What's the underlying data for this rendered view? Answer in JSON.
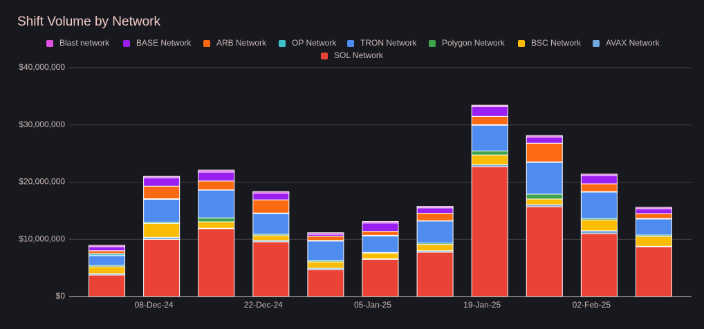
{
  "chart_data": {
    "type": "stacked-bar",
    "title": "Shift Volume by Network",
    "categories": [
      null,
      "08-Dec-24",
      null,
      "22-Dec-24",
      null,
      "05-Jan-25",
      null,
      "19-Jan-25",
      null,
      "02-Feb-25",
      null
    ],
    "series": [
      {
        "name": "Blast network",
        "color": "#e052e0",
        "values": [
          250000,
          250000,
          350000,
          250000,
          250000,
          250000,
          250000,
          250000,
          250000,
          250000,
          250000
        ]
      },
      {
        "name": "BASE Network",
        "color": "#9b1ff0",
        "values": [
          700000,
          1450000,
          1550000,
          1200000,
          350000,
          1450000,
          950000,
          1700000,
          1100000,
          1450000,
          850000
        ]
      },
      {
        "name": "ARB Network",
        "color": "#fb6a12",
        "values": [
          500000,
          2200000,
          1550000,
          2300000,
          750000,
          700000,
          1300000,
          1450000,
          3250000,
          1350000,
          850000
        ]
      },
      {
        "name": "OP Network",
        "color": "#3fc1c9",
        "values": [
          350000,
          100000,
          50000,
          100000,
          100000,
          100000,
          50000,
          100000,
          100000,
          100000,
          100000
        ]
      },
      {
        "name": "TRON Network",
        "color": "#4e8cf0",
        "values": [
          1700000,
          4000000,
          4850000,
          3600000,
          3400000,
          2900000,
          3850000,
          4500000,
          5550000,
          4600000,
          2800000
        ]
      },
      {
        "name": "Polygon Network",
        "color": "#3ca24b",
        "values": [
          250000,
          250000,
          700000,
          250000,
          250000,
          100000,
          250000,
          700000,
          850000,
          250000,
          250000
        ]
      },
      {
        "name": "BSC Network",
        "color": "#fbbc04",
        "values": [
          1200000,
          2400000,
          1100000,
          850000,
          1100000,
          1000000,
          1100000,
          1700000,
          1000000,
          1900000,
          1700000
        ]
      },
      {
        "name": "AVAX Network",
        "color": "#6fa8dc",
        "values": [
          250000,
          350000,
          100000,
          250000,
          250000,
          100000,
          250000,
          350000,
          350000,
          500000,
          100000
        ]
      },
      {
        "name": "SOL Network",
        "color": "#ea4335",
        "values": [
          3750000,
          10000000,
          11850000,
          9550000,
          4700000,
          6500000,
          7750000,
          22700000,
          15700000,
          11000000,
          8700000
        ]
      }
    ],
    "ylim": [
      0,
      40000000
    ],
    "yticks": [
      {
        "value": 0,
        "label": "$0"
      },
      {
        "value": 10000000,
        "label": "$10,000,000"
      },
      {
        "value": 20000000,
        "label": "$20,000,000"
      },
      {
        "value": 30000000,
        "label": "$30,000,000"
      },
      {
        "value": 40000000,
        "label": "$40,000,000"
      }
    ],
    "grid": true,
    "legend": "top"
  }
}
